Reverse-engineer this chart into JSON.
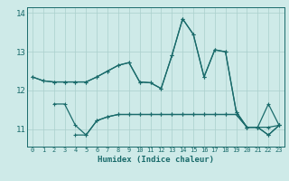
{
  "xlabel": "Humidex (Indice chaleur)",
  "background_color": "#ceeae8",
  "grid_color": "#aacfcc",
  "line_color": "#1a6b6b",
  "xlim": [
    -0.5,
    23.5
  ],
  "ylim": [
    10.55,
    14.15
  ],
  "yticks": [
    11,
    12,
    13,
    14
  ],
  "xticks": [
    0,
    1,
    2,
    3,
    4,
    5,
    6,
    7,
    8,
    9,
    10,
    11,
    12,
    13,
    14,
    15,
    16,
    17,
    18,
    19,
    20,
    21,
    22,
    23
  ],
  "line1_x": [
    0,
    1,
    2,
    3,
    4,
    5,
    6,
    7,
    8,
    9,
    10,
    11,
    12,
    13,
    14,
    15,
    16,
    17,
    18,
    19,
    20,
    21,
    22,
    23
  ],
  "line1_y": [
    12.35,
    12.25,
    12.22,
    12.22,
    12.22,
    12.22,
    12.35,
    12.5,
    12.65,
    12.72,
    12.22,
    12.2,
    12.05,
    12.9,
    13.85,
    13.45,
    12.35,
    13.05,
    13.0,
    11.45,
    11.05,
    11.05,
    11.05,
    11.1
  ],
  "line2_x": [
    0,
    1,
    2,
    3,
    4,
    5,
    6,
    7,
    8,
    9,
    10,
    11,
    12,
    13,
    14,
    15,
    16,
    17,
    18,
    19,
    20,
    21,
    22,
    23
  ],
  "line2_y": [
    12.35,
    12.25,
    12.22,
    12.22,
    12.22,
    12.22,
    12.35,
    12.5,
    12.65,
    12.72,
    12.22,
    12.2,
    12.05,
    12.9,
    13.85,
    13.45,
    12.35,
    13.05,
    13.0,
    11.45,
    11.05,
    11.05,
    11.65,
    11.1
  ],
  "line3_x": [
    2,
    3,
    4,
    5,
    6,
    7,
    8,
    9,
    10,
    11,
    12,
    13,
    14,
    15,
    16,
    17,
    18,
    19,
    20,
    21,
    22,
    23
  ],
  "line3_y": [
    11.65,
    11.65,
    11.1,
    10.85,
    11.22,
    11.32,
    11.38,
    11.38,
    11.38,
    11.38,
    11.38,
    11.38,
    11.38,
    11.38,
    11.38,
    11.38,
    11.38,
    11.38,
    11.05,
    11.05,
    10.85,
    11.1
  ],
  "line4_x": [
    4,
    5,
    6,
    7,
    8,
    9,
    10,
    11,
    12,
    13,
    14,
    15,
    16,
    17,
    18,
    19,
    20,
    21,
    22,
    23
  ],
  "line4_y": [
    10.85,
    10.85,
    11.22,
    11.32,
    11.38,
    11.38,
    11.38,
    11.38,
    11.38,
    11.38,
    11.38,
    11.38,
    11.38,
    11.38,
    11.38,
    11.38,
    11.05,
    11.05,
    10.85,
    11.1
  ]
}
